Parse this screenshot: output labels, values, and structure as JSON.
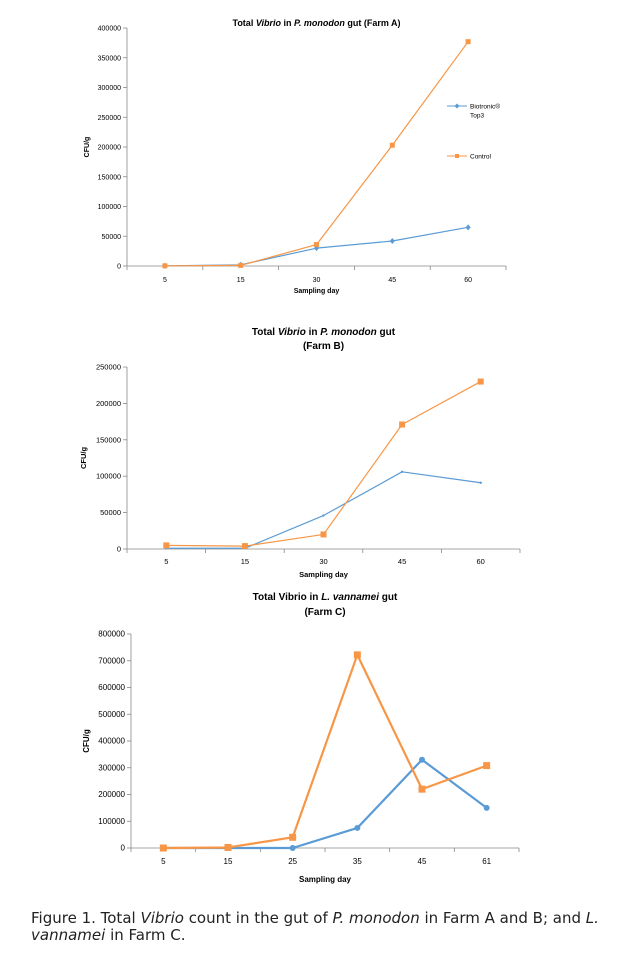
{
  "chart_data": [
    {
      "type": "line",
      "title_parts": [
        "Total ",
        "Vibrio",
        " in ",
        "P. monodon",
        " gut (Farm A)"
      ],
      "title_italic": [
        false,
        true,
        false,
        true,
        false
      ],
      "xlabel": "Sampling day",
      "ylabel": "CFU/g",
      "categories": [
        "5",
        "15",
        "30",
        "45",
        "60"
      ],
      "ylim": [
        0,
        400000
      ],
      "yticks": [
        "0",
        "50000",
        "100000",
        "150000",
        "200000",
        "250000",
        "300000",
        "350000",
        "400000"
      ],
      "legend_placement": "right",
      "series": [
        {
          "name_lines": [
            "Biotronic®",
            "Top3"
          ],
          "color": "#5b9bd5",
          "marker": "diamond",
          "values": [
            300,
            2000,
            30000,
            42000,
            65000
          ]
        },
        {
          "name_lines": [
            "Control"
          ],
          "color": "#f79646",
          "marker": "square",
          "values": [
            300,
            1000,
            36000,
            203000,
            377000
          ]
        }
      ]
    },
    {
      "type": "line",
      "title_line1_parts": [
        "Total ",
        "Vibrio",
        " in ",
        "P. monodon",
        " gut"
      ],
      "title_line1_italic": [
        false,
        true,
        false,
        true,
        false
      ],
      "title_line2": "(Farm B)",
      "xlabel": "Sampling day",
      "ylabel": "CFU/g",
      "categories": [
        "5",
        "15",
        "30",
        "45",
        "60"
      ],
      "ylim": [
        0,
        250000
      ],
      "yticks": [
        "0",
        "50000",
        "100000",
        "150000",
        "200000",
        "250000"
      ],
      "series": [
        {
          "color": "#5b9bd5",
          "marker": "none",
          "values": [
            1000,
            1000,
            46000,
            106000,
            91000
          ]
        },
        {
          "color": "#f79646",
          "marker": "square",
          "values": [
            5000,
            4000,
            20000,
            171000,
            230000
          ]
        }
      ]
    },
    {
      "type": "line",
      "title_line1_parts": [
        "Total Vibrio in ",
        "L. vannamei",
        " gut"
      ],
      "title_line1_italic": [
        false,
        true,
        false
      ],
      "title_line2": "(Farm C)",
      "xlabel": "Sampling day",
      "ylabel": "CFU/g",
      "categories": [
        "5",
        "15",
        "25",
        "35",
        "45",
        "61"
      ],
      "ylim": [
        0,
        800000
      ],
      "yticks": [
        "0",
        "100000",
        "200000",
        "300000",
        "400000",
        "500000",
        "600000",
        "700000",
        "800000"
      ],
      "series": [
        {
          "color": "#5b9bd5",
          "marker": "circle",
          "values": [
            0,
            0,
            0,
            75000,
            330000,
            150000
          ]
        },
        {
          "color": "#f79646",
          "marker": "square",
          "values": [
            0,
            2000,
            40000,
            722000,
            220000,
            308000
          ]
        }
      ]
    }
  ],
  "caption": {
    "parts": [
      "Figure 1. Total ",
      "Vibrio",
      " count in the gut of ",
      "P. monodon",
      " in Farm A and B; and ",
      "L. vannamei",
      " in Farm C."
    ],
    "italic": [
      false,
      true,
      false,
      true,
      false,
      true,
      false
    ]
  }
}
